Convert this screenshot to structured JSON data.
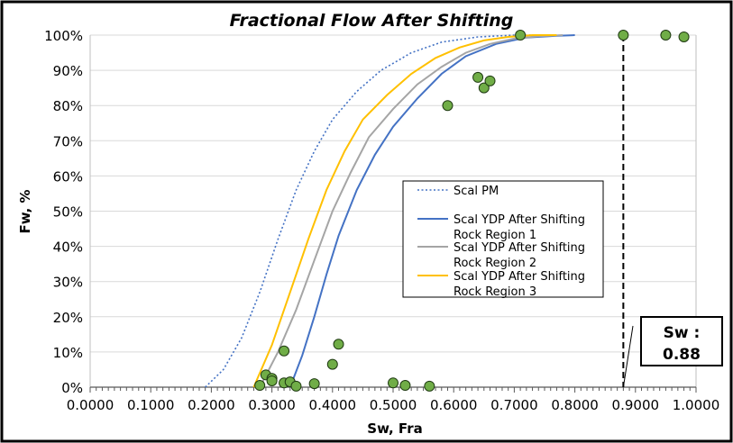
{
  "chart_data": {
    "type": "scatter",
    "title": "Fractional Flow After Shifting",
    "xlabel": "Sw, Fra",
    "ylabel": "Fw, %",
    "xlim": [
      0,
      1
    ],
    "ylim": [
      0,
      100
    ],
    "x_ticks": [
      "0.0000",
      "0.1000",
      "0.2000",
      "0.3000",
      "0.4000",
      "0.5000",
      "0.6000",
      "0.7000",
      "0.8000",
      "0.9000",
      "1.0000"
    ],
    "y_ticks": [
      "0%",
      "10%",
      "20%",
      "30%",
      "40%",
      "50%",
      "60%",
      "70%",
      "80%",
      "90%",
      "100%"
    ],
    "grid": "horizontal",
    "legend_position": "center-right",
    "series": [
      {
        "name": "Scal PM",
        "kind": "line",
        "color": "#4472c4",
        "style": "dotted",
        "points": [
          [
            0.19,
            0
          ],
          [
            0.22,
            5
          ],
          [
            0.25,
            14
          ],
          [
            0.28,
            27
          ],
          [
            0.31,
            42
          ],
          [
            0.34,
            56
          ],
          [
            0.37,
            67
          ],
          [
            0.4,
            76
          ],
          [
            0.44,
            84
          ],
          [
            0.48,
            90
          ],
          [
            0.53,
            95
          ],
          [
            0.58,
            98
          ],
          [
            0.64,
            99.5
          ],
          [
            0.7,
            100
          ],
          [
            0.77,
            100
          ]
        ]
      },
      {
        "name": "Scal YDP After Shifting Rock Region 1",
        "kind": "line",
        "color": "#4472c4",
        "style": "solid",
        "points": [
          [
            0.33,
            0
          ],
          [
            0.35,
            9
          ],
          [
            0.37,
            20
          ],
          [
            0.39,
            32
          ],
          [
            0.41,
            43
          ],
          [
            0.44,
            56
          ],
          [
            0.47,
            66
          ],
          [
            0.5,
            74
          ],
          [
            0.54,
            82
          ],
          [
            0.58,
            89
          ],
          [
            0.62,
            94
          ],
          [
            0.67,
            97.5
          ],
          [
            0.72,
            99.3
          ],
          [
            0.77,
            99.8
          ],
          [
            0.8,
            100
          ]
        ]
      },
      {
        "name": "Scal YDP After Shifting Rock Region 2",
        "kind": "line",
        "color": "#a5a5a5",
        "style": "solid",
        "points": [
          [
            0.28,
            0
          ],
          [
            0.31,
            10
          ],
          [
            0.34,
            22
          ],
          [
            0.37,
            36
          ],
          [
            0.4,
            50
          ],
          [
            0.43,
            61
          ],
          [
            0.46,
            71
          ],
          [
            0.5,
            79
          ],
          [
            0.54,
            86
          ],
          [
            0.58,
            91
          ],
          [
            0.62,
            95
          ],
          [
            0.66,
            97.5
          ],
          [
            0.7,
            99
          ],
          [
            0.74,
            99.7
          ],
          [
            0.78,
            100
          ]
        ]
      },
      {
        "name": "Scal YDP After Shifting Rock Region 3",
        "kind": "line",
        "color": "#ffc000",
        "style": "solid",
        "points": [
          [
            0.27,
            0
          ],
          [
            0.3,
            12
          ],
          [
            0.33,
            27
          ],
          [
            0.36,
            42
          ],
          [
            0.39,
            56
          ],
          [
            0.42,
            67
          ],
          [
            0.45,
            76
          ],
          [
            0.49,
            83
          ],
          [
            0.53,
            89
          ],
          [
            0.57,
            93.5
          ],
          [
            0.61,
            96.5
          ],
          [
            0.65,
            98.5
          ],
          [
            0.69,
            99.5
          ],
          [
            0.73,
            100
          ],
          [
            0.77,
            100
          ]
        ]
      },
      {
        "kind": "scatter",
        "color": "#70ad47",
        "points": [
          [
            0.28,
            0.5
          ],
          [
            0.29,
            3.5
          ],
          [
            0.3,
            2.5
          ],
          [
            0.3,
            1.8
          ],
          [
            0.32,
            10.3
          ],
          [
            0.32,
            1.2
          ],
          [
            0.33,
            1.5
          ],
          [
            0.34,
            0.3
          ],
          [
            0.37,
            1.0
          ],
          [
            0.4,
            6.5
          ],
          [
            0.41,
            12.2
          ],
          [
            0.5,
            1.2
          ],
          [
            0.52,
            0.5
          ],
          [
            0.56,
            0.3
          ],
          [
            0.59,
            80
          ],
          [
            0.64,
            88
          ],
          [
            0.65,
            85
          ],
          [
            0.66,
            87
          ],
          [
            0.71,
            100
          ],
          [
            0.88,
            100
          ],
          [
            0.95,
            100
          ],
          [
            0.98,
            99.5
          ]
        ]
      }
    ],
    "marker_line": {
      "x": 0.88,
      "color": "#000000",
      "style": "dashed"
    },
    "annotation": {
      "line1": "Sw :",
      "line2": "0.88"
    }
  }
}
